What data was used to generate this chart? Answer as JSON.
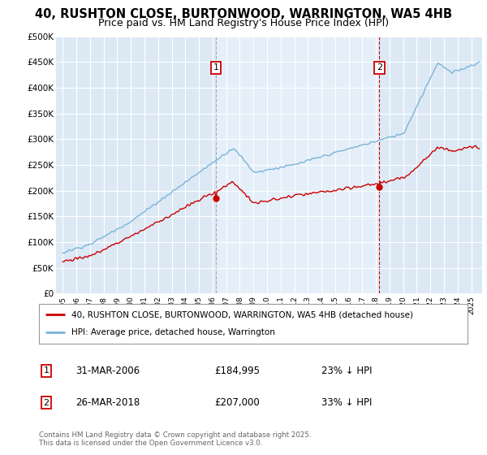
{
  "title_line1": "40, RUSHTON CLOSE, BURTONWOOD, WARRINGTON, WA5 4HB",
  "title_line2": "Price paid vs. HM Land Registry's House Price Index (HPI)",
  "plot_bg_color": "#dce9f5",
  "ylim": [
    0,
    500000
  ],
  "yticks": [
    0,
    50000,
    100000,
    150000,
    200000,
    250000,
    300000,
    350000,
    400000,
    450000,
    500000
  ],
  "ytick_labels": [
    "£0",
    "£50K",
    "£100K",
    "£150K",
    "£200K",
    "£250K",
    "£300K",
    "£350K",
    "£400K",
    "£450K",
    "£500K"
  ],
  "hpi_color": "#7ab4d8",
  "price_color": "#cc0000",
  "marker1_year": 2006.25,
  "marker1_price": 184995,
  "marker1_date": "31-MAR-2006",
  "marker1_label": "£184,995",
  "marker1_pct": "23% ↓ HPI",
  "marker2_year": 2018.25,
  "marker2_price": 207000,
  "marker2_date": "26-MAR-2018",
  "marker2_label": "£207,000",
  "marker2_pct": "33% ↓ HPI",
  "legend_label1": "40, RUSHTON CLOSE, BURTONWOOD, WARRINGTON, WA5 4HB (detached house)",
  "legend_label2": "HPI: Average price, detached house, Warrington",
  "footnote": "Contains HM Land Registry data © Crown copyright and database right 2025.\nThis data is licensed under the Open Government Licence v3.0.",
  "xmin": 1994.5,
  "xmax": 2025.8
}
